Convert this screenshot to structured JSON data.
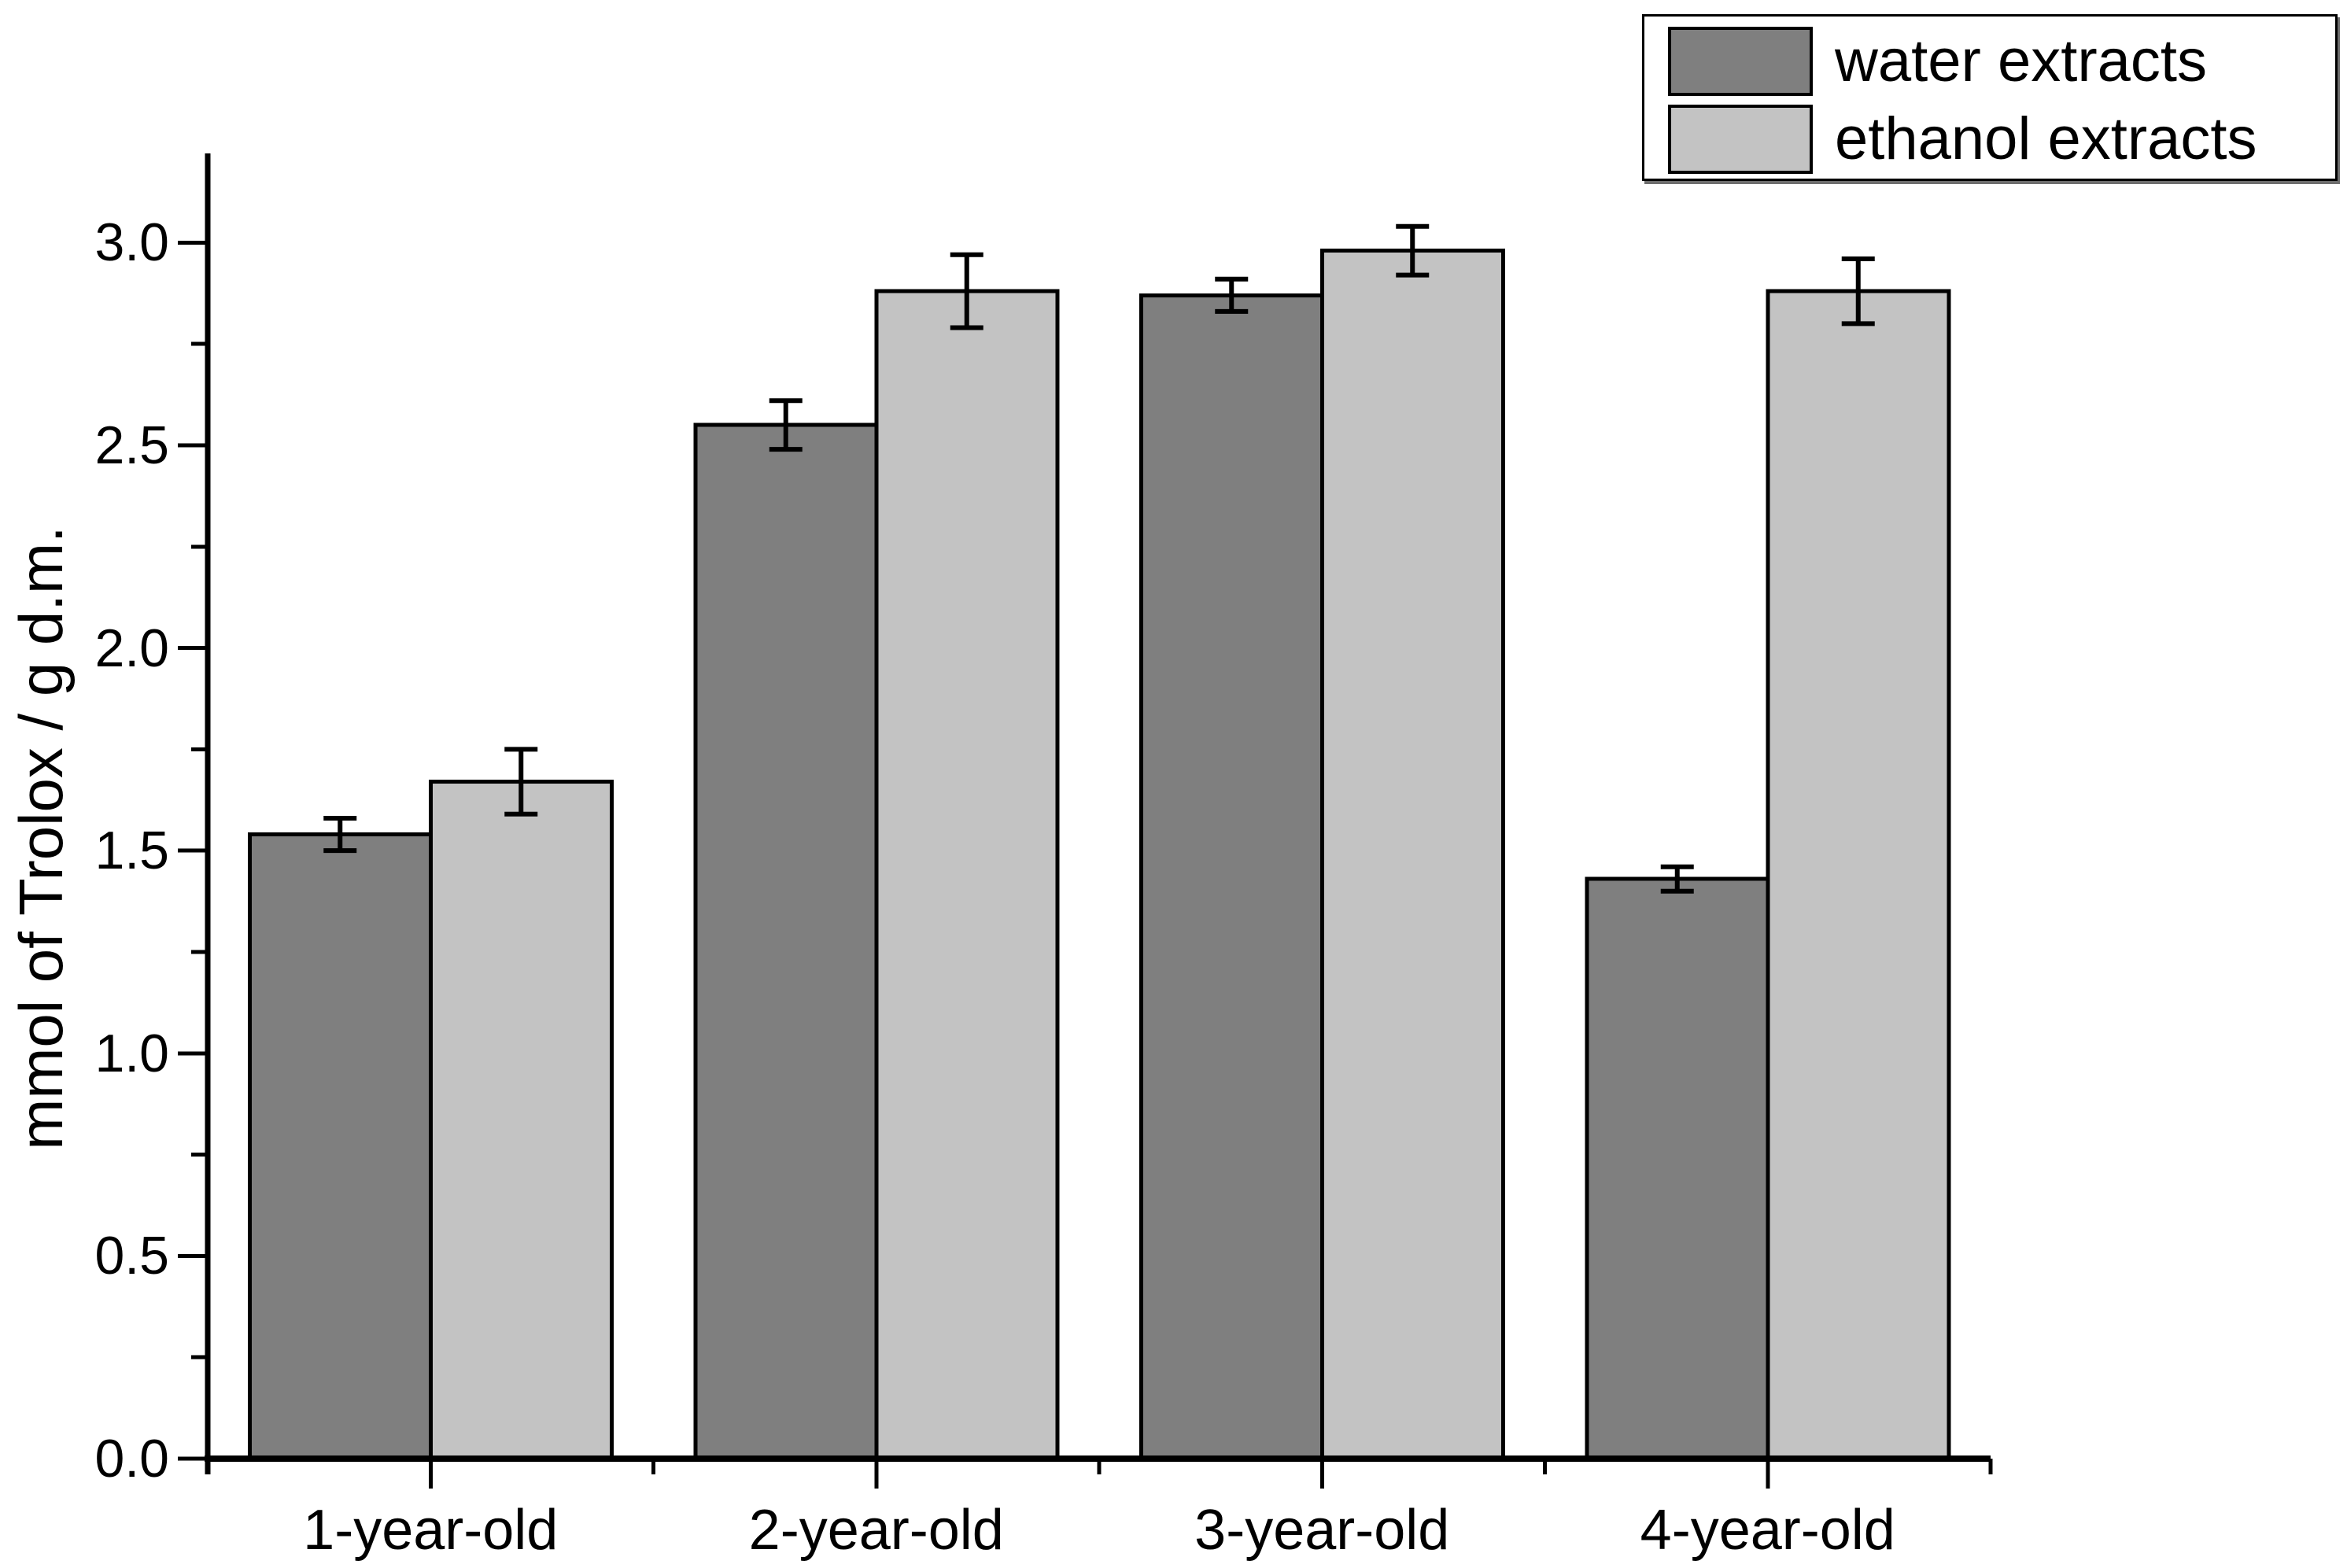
{
  "chart_data": {
    "type": "bar",
    "title": "",
    "ylabel": "mmol of Trolox / g d.m.",
    "xlabel": "",
    "categories": [
      "1-year-old",
      "2-year-old",
      "3-year-old",
      "4-year-old"
    ],
    "series": [
      {
        "name": "water extracts",
        "color": "#7f7f7f",
        "values": [
          1.54,
          2.55,
          2.87,
          1.43
        ],
        "errors": [
          0.04,
          0.06,
          0.04,
          0.03
        ]
      },
      {
        "name": "ethanol extracts",
        "color": "#c3c3c3",
        "values": [
          1.67,
          2.88,
          2.98,
          2.88
        ],
        "errors": [
          0.08,
          0.09,
          0.06,
          0.08
        ]
      }
    ],
    "ylim": [
      0,
      3.22
    ],
    "y_major_tick_labels": [
      "0.0",
      "0.5",
      "1.0",
      "1.5",
      "2.0",
      "2.5",
      "3.0"
    ],
    "y_major_tick_step": 0.5,
    "y_minor_tick_step": 0.25,
    "grid": false,
    "error_bars": true,
    "legend_position": "top-right",
    "colors": {
      "axis": "#000000",
      "text": "#000000",
      "bar_edge": "#000000",
      "error_bar": "#000000",
      "background": "#ffffff"
    }
  }
}
